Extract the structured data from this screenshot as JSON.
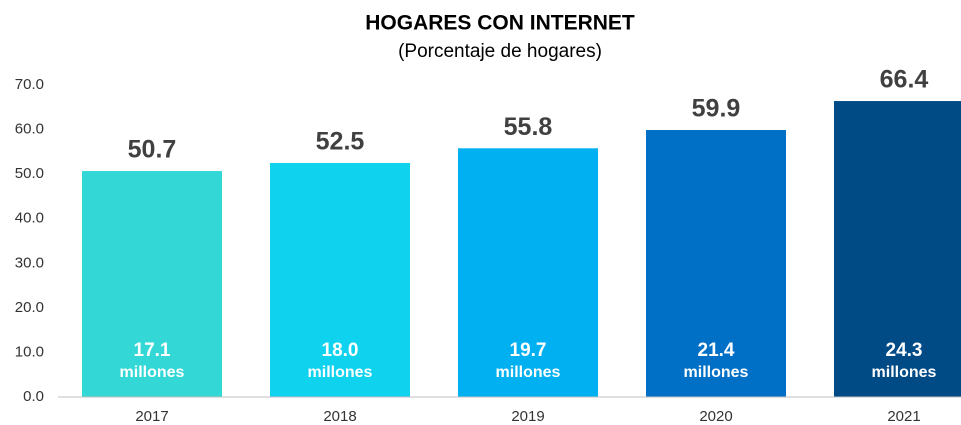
{
  "chart_data": {
    "type": "bar",
    "title": "HOGARES CON INTERNET",
    "subtitle": "(Porcentaje de hogares)",
    "categories": [
      "2017",
      "2018",
      "2019",
      "2020",
      "2021"
    ],
    "values": [
      50.7,
      52.5,
      55.8,
      59.9,
      66.4
    ],
    "colors": [
      "#33d8d6",
      "#0fd2ef",
      "#00b0f0",
      "#0070c6",
      "#004a86"
    ],
    "ylim": [
      0,
      70
    ],
    "yticks": [
      {
        "value": 0,
        "label": "0.0"
      },
      {
        "value": 10,
        "label": "10.0"
      },
      {
        "value": 20,
        "label": "20.0"
      },
      {
        "value": 30,
        "label": "30.0"
      },
      {
        "value": 40,
        "label": "40.0"
      },
      {
        "value": 50,
        "label": "50.0"
      },
      {
        "value": 60,
        "label": "60.0"
      },
      {
        "value": 70,
        "label": "70.0"
      }
    ],
    "households": {
      "values": [
        17.1,
        18,
        19.7,
        21.4,
        24.3
      ],
      "value_labels": [
        "17.1",
        "18.0",
        "19.7",
        "21.4",
        "24.3"
      ],
      "unit": "millones"
    },
    "grid": false
  }
}
